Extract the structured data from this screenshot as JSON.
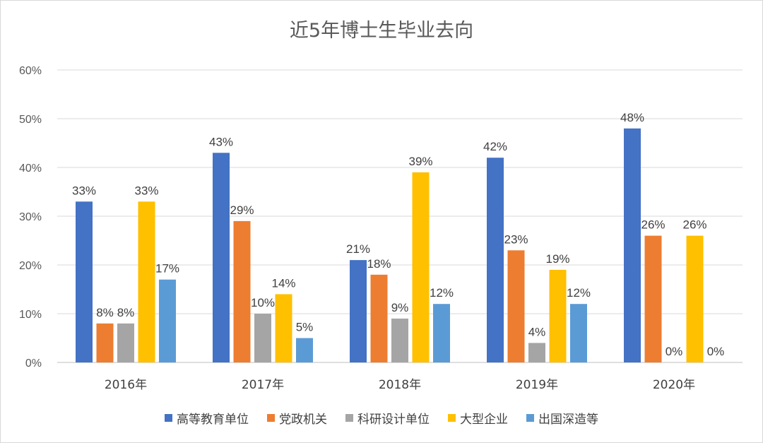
{
  "chart_data": {
    "type": "bar",
    "title": "近5年博士生毕业去向",
    "categories": [
      "2016年",
      "2017年",
      "2018年",
      "2019年",
      "2020年"
    ],
    "ylim": [
      0,
      60
    ],
    "yticks": [
      "0%",
      "10%",
      "20%",
      "30%",
      "40%",
      "50%",
      "60%"
    ],
    "grid": true,
    "legend_position": "bottom",
    "series": [
      {
        "name": "高等教育单位",
        "color": "#4472c4",
        "values": [
          33,
          43,
          21,
          42,
          48
        ],
        "labels": [
          "33%",
          "43%",
          "21%",
          "42%",
          "48%"
        ]
      },
      {
        "name": "党政机关",
        "color": "#ed7d31",
        "values": [
          8,
          29,
          18,
          23,
          26
        ],
        "labels": [
          "8%",
          "29%",
          "18%",
          "23%",
          "26%"
        ]
      },
      {
        "name": "科研设计单位",
        "color": "#a5a5a5",
        "values": [
          8,
          10,
          9,
          4,
          0
        ],
        "labels": [
          "8%",
          "10%",
          "9%",
          "4%",
          "0%"
        ]
      },
      {
        "name": "大型企业",
        "color": "#ffc000",
        "values": [
          33,
          14,
          39,
          19,
          26
        ],
        "labels": [
          "33%",
          "14%",
          "39%",
          "19%",
          "26%"
        ]
      },
      {
        "name": "出国深造等",
        "color": "#5b9bd5",
        "values": [
          17,
          5,
          12,
          12,
          0
        ],
        "labels": [
          "17%",
          "5%",
          "12%",
          "12%",
          "0%"
        ]
      }
    ]
  }
}
